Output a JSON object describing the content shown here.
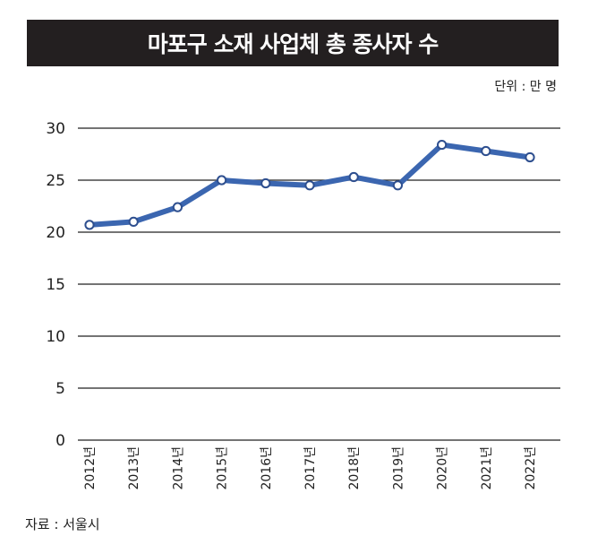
{
  "header": {
    "title": "마포구 소재 사업체 총 종사자 수"
  },
  "unit_label": "단위 : 만 명",
  "source_label": "자료 : 서울시",
  "chart_data": {
    "type": "line",
    "title": "마포구 소재 사업체 총 종사자 수",
    "categories": [
      "2012년",
      "2013년",
      "2014년",
      "2015년",
      "2016년",
      "2017년",
      "2018년",
      "2019년",
      "2020년",
      "2021년",
      "2022년"
    ],
    "series": [
      {
        "values": [
          20.7,
          21.0,
          22.4,
          25.0,
          24.7,
          24.5,
          25.3,
          24.5,
          28.4,
          27.8,
          27.2
        ]
      }
    ],
    "ylim": [
      0,
      30
    ],
    "yticks": [
      0,
      5,
      10,
      15,
      20,
      25,
      30
    ],
    "grid": true,
    "colors": {
      "line": "#3b66b0",
      "marker_fill": "#ffffff",
      "grid": "#222222"
    }
  }
}
